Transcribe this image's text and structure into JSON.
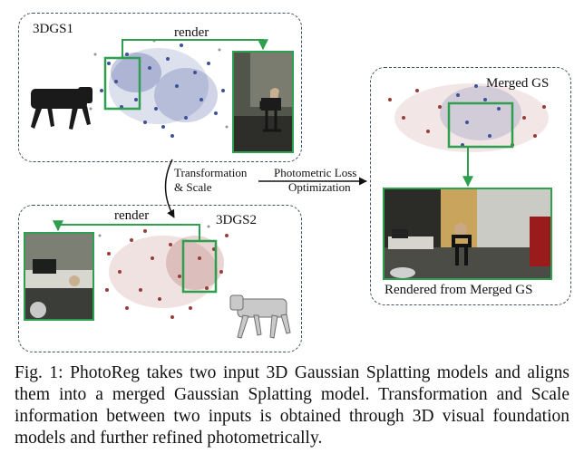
{
  "figure": {
    "panel1_title": "3DGS1",
    "panel1_render": "render",
    "panel2_title": "3DGS2",
    "panel2_render": "render",
    "transform_line1": "Transformation",
    "transform_line2": "& Scale",
    "loss_line1": "Photometric Loss",
    "loss_line2": "Optimization",
    "merged_title": "Merged GS",
    "merged_caption": "Rendered from Merged GS"
  },
  "caption": {
    "text": "Fig. 1: PhotoReg takes two input 3D Gaussian Splatting models and aligns them into a merged Gaussian Splatting model. Transformation and Scale information between two inputs is obtained through 3D visual foundation models and further refined photometrically."
  },
  "colors": {
    "accent_green": "#2e9e4f",
    "points_blue": "#2b3f8f",
    "points_red": "#8b2a24",
    "dash_border": "#44505f"
  }
}
